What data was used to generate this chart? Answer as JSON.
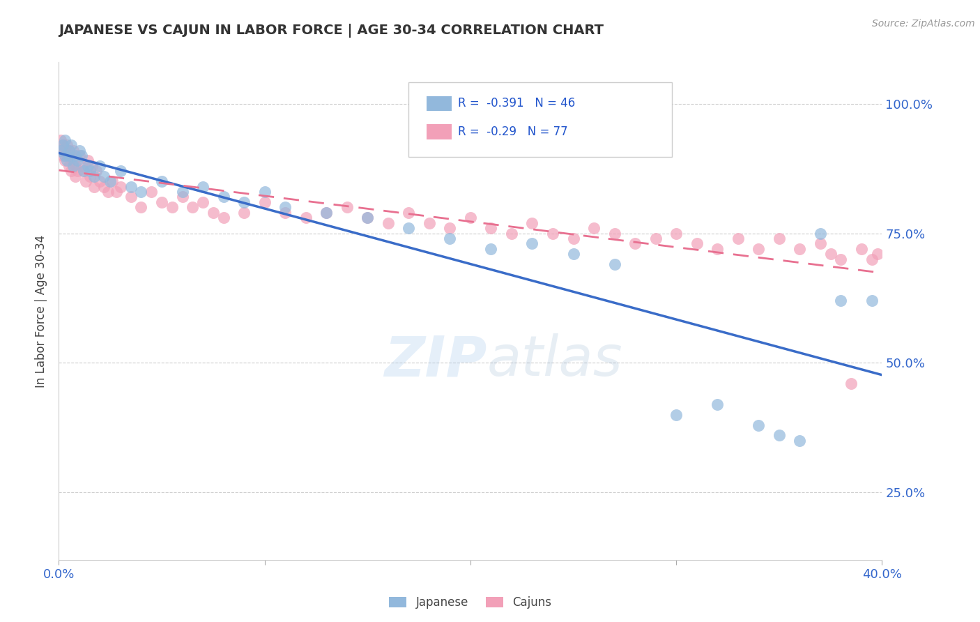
{
  "title": "JAPANESE VS CAJUN IN LABOR FORCE | AGE 30-34 CORRELATION CHART",
  "source_text": "Source: ZipAtlas.com",
  "ylabel_label": "In Labor Force | Age 30-34",
  "xlim": [
    0.0,
    0.4
  ],
  "ylim": [
    0.12,
    1.08
  ],
  "xticks": [
    0.0,
    0.1,
    0.2,
    0.3,
    0.4
  ],
  "xticklabels": [
    "0.0%",
    "",
    "",
    "",
    "40.0%"
  ],
  "yticks": [
    0.25,
    0.5,
    0.75,
    1.0
  ],
  "yticklabels": [
    "25.0%",
    "50.0%",
    "75.0%",
    "100.0%"
  ],
  "japanese_color": "#92B8DC",
  "cajun_color": "#F2A0B8",
  "japanese_R": -0.391,
  "japanese_N": 46,
  "cajun_R": -0.29,
  "cajun_N": 77,
  "legend_label_japanese": "Japanese",
  "legend_label_cajun": "Cajuns",
  "watermark_zip": "ZIP",
  "watermark_atlas": "atlas",
  "trendline_blue": "#3A6CC8",
  "trendline_pink": "#E87090",
  "japanese_x": [
    0.001,
    0.002,
    0.003,
    0.003,
    0.004,
    0.005,
    0.005,
    0.006,
    0.007,
    0.008,
    0.009,
    0.01,
    0.011,
    0.012,
    0.014,
    0.015,
    0.017,
    0.02,
    0.022,
    0.025,
    0.03,
    0.035,
    0.04,
    0.05,
    0.06,
    0.07,
    0.08,
    0.09,
    0.1,
    0.11,
    0.13,
    0.15,
    0.17,
    0.19,
    0.21,
    0.23,
    0.25,
    0.27,
    0.3,
    0.32,
    0.34,
    0.35,
    0.36,
    0.37,
    0.38,
    0.395
  ],
  "japanese_y": [
    0.91,
    0.92,
    0.9,
    0.93,
    0.89,
    0.91,
    0.9,
    0.92,
    0.88,
    0.9,
    0.89,
    0.91,
    0.9,
    0.87,
    0.88,
    0.87,
    0.86,
    0.88,
    0.86,
    0.85,
    0.87,
    0.84,
    0.83,
    0.85,
    0.83,
    0.84,
    0.82,
    0.81,
    0.83,
    0.8,
    0.79,
    0.78,
    0.76,
    0.74,
    0.72,
    0.73,
    0.71,
    0.69,
    0.4,
    0.42,
    0.38,
    0.36,
    0.35,
    0.75,
    0.62,
    0.62
  ],
  "cajun_x": [
    0.001,
    0.001,
    0.002,
    0.002,
    0.003,
    0.003,
    0.004,
    0.004,
    0.005,
    0.005,
    0.006,
    0.006,
    0.007,
    0.007,
    0.008,
    0.008,
    0.009,
    0.01,
    0.011,
    0.012,
    0.013,
    0.014,
    0.015,
    0.016,
    0.017,
    0.018,
    0.02,
    0.022,
    0.024,
    0.026,
    0.028,
    0.03,
    0.035,
    0.04,
    0.045,
    0.05,
    0.055,
    0.06,
    0.065,
    0.07,
    0.075,
    0.08,
    0.09,
    0.1,
    0.11,
    0.12,
    0.13,
    0.14,
    0.15,
    0.16,
    0.17,
    0.18,
    0.19,
    0.2,
    0.21,
    0.22,
    0.23,
    0.24,
    0.25,
    0.26,
    0.27,
    0.28,
    0.29,
    0.3,
    0.31,
    0.32,
    0.33,
    0.34,
    0.35,
    0.36,
    0.37,
    0.375,
    0.38,
    0.385,
    0.39,
    0.395,
    0.398
  ],
  "cajun_y": [
    0.93,
    0.91,
    0.92,
    0.9,
    0.91,
    0.89,
    0.92,
    0.9,
    0.91,
    0.88,
    0.9,
    0.87,
    0.91,
    0.89,
    0.88,
    0.86,
    0.87,
    0.9,
    0.88,
    0.87,
    0.85,
    0.89,
    0.86,
    0.88,
    0.84,
    0.87,
    0.85,
    0.84,
    0.83,
    0.85,
    0.83,
    0.84,
    0.82,
    0.8,
    0.83,
    0.81,
    0.8,
    0.82,
    0.8,
    0.81,
    0.79,
    0.78,
    0.79,
    0.81,
    0.79,
    0.78,
    0.79,
    0.8,
    0.78,
    0.77,
    0.79,
    0.77,
    0.76,
    0.78,
    0.76,
    0.75,
    0.77,
    0.75,
    0.74,
    0.76,
    0.75,
    0.73,
    0.74,
    0.75,
    0.73,
    0.72,
    0.74,
    0.72,
    0.74,
    0.72,
    0.73,
    0.71,
    0.7,
    0.46,
    0.72,
    0.7,
    0.71
  ]
}
